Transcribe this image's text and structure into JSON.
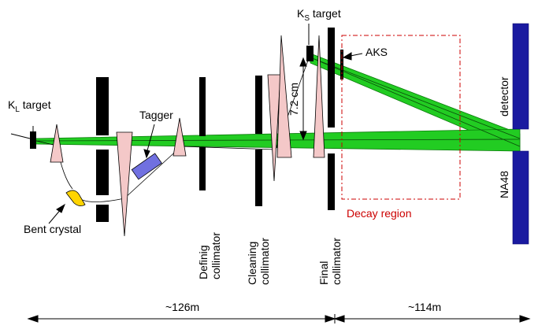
{
  "colors": {
    "beam": "#22cc22",
    "beam_edge": "#0a7a0a",
    "wedge": "#f4c8c8",
    "detector": "#1a1aa0",
    "tagger": "#7070e0",
    "crystal": "#ffd400",
    "decay_region": "#cc0000"
  },
  "labels": {
    "kl_main": "K",
    "kl_sub": "L",
    "kl_rest": " target",
    "ks_main": "K",
    "ks_sub": "S",
    "ks_rest": " target",
    "tagger": "Tagger",
    "aks": "AKS",
    "bent_crystal": "Bent crystal",
    "distance_72": "7.2 cm",
    "decay_region": "Decay region",
    "detector": "detector",
    "na48": "NA48",
    "defining_collimator": [
      "Definig",
      "collimator"
    ],
    "cleaning_collimator": [
      "Cleaning",
      "collimator"
    ],
    "final_collimator": [
      "Final",
      "collimator"
    ],
    "dist_126": "~126m",
    "dist_114": "~114m"
  },
  "icons": [
    "left-arrowhead-icon",
    "right-arrowhead-icon"
  ]
}
